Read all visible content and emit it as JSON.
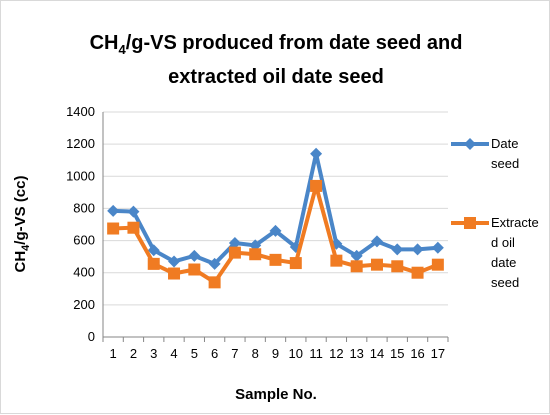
{
  "chart_data": {
    "type": "line",
    "title_lines": [
      {
        "main": "CH",
        "sub": "4",
        "rest": "/g-VS produced from date seed and"
      },
      {
        "main": "extracted oil date seed"
      }
    ],
    "xlabel": "Sample No.",
    "ylabel": {
      "main": "CH",
      "sub": "4",
      "rest": "/g-VS  (cc)"
    },
    "x": [
      "1",
      "2",
      "3",
      "4",
      "5",
      "6",
      "7",
      "8",
      "9",
      "10",
      "11",
      "12",
      "13",
      "14",
      "15",
      "16",
      "17"
    ],
    "ylim": [
      0,
      1400
    ],
    "yticks": [
      "0",
      "200",
      "400",
      "600",
      "800",
      "1000",
      "1200",
      "1400"
    ],
    "grid": "horizontal",
    "legend_position": "right",
    "series": [
      {
        "name": "Date seed",
        "legend_lines": [
          "Date",
          "seed"
        ],
        "marker": "diamond",
        "color": "#4a86c8",
        "values": [
          785,
          780,
          540,
          470,
          505,
          455,
          585,
          570,
          660,
          560,
          1140,
          580,
          505,
          595,
          545,
          545,
          555
        ]
      },
      {
        "name": "Extracted oil date seed",
        "legend_lines": [
          "Extracte",
          "d oil",
          "date",
          "seed"
        ],
        "marker": "square",
        "color": "#f07b22",
        "values": [
          675,
          680,
          455,
          395,
          420,
          340,
          525,
          515,
          480,
          460,
          940,
          475,
          440,
          450,
          440,
          400,
          450
        ]
      }
    ]
  }
}
